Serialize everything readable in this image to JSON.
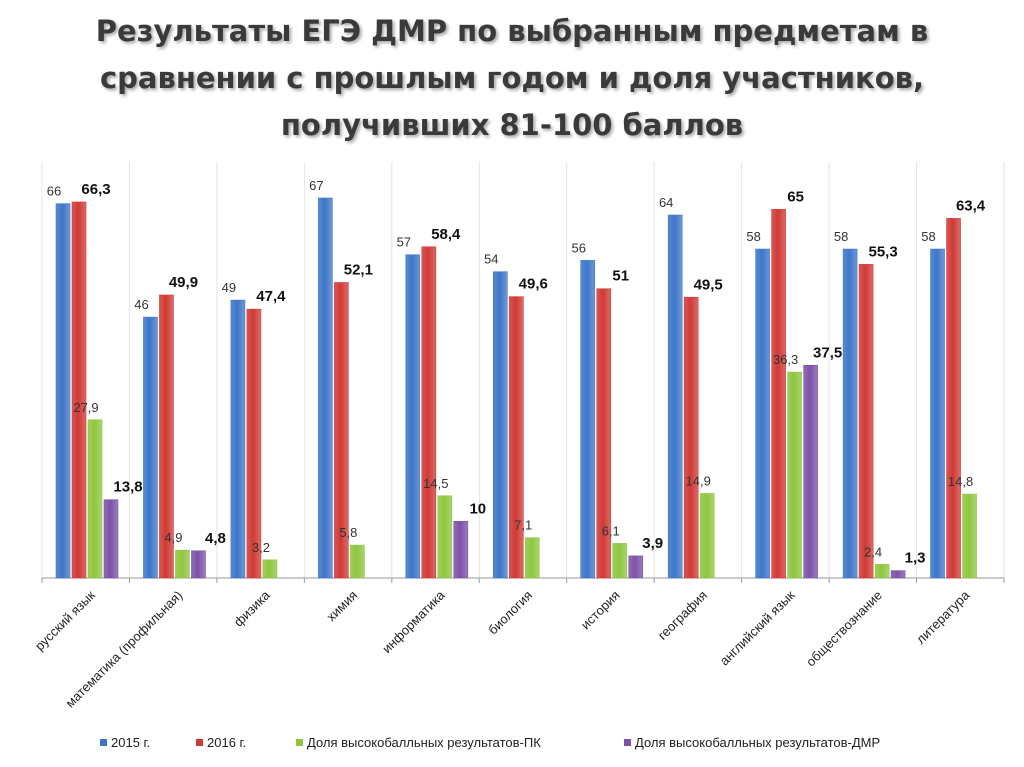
{
  "title_lines": [
    "Результаты ЕГЭ ДМР по выбранным предметам в",
    "сравнении с прошлым годом и доля участников,",
    "получивших 81-100 баллов"
  ],
  "chart_data": {
    "type": "bar",
    "title": "Результаты ЕГЭ ДМР по выбранным предметам в сравнении с прошлым годом и доля участников, получивших 81-100 баллов",
    "categories": [
      "русский язык",
      "математика (профильная)",
      "физика",
      "химия",
      "информатика",
      "биология",
      "история",
      "география",
      "английский язык",
      "обществознание",
      "литература"
    ],
    "series": [
      {
        "name": "2015 г.",
        "color": "#3e76c8",
        "label_style": "normal",
        "values": [
          66,
          46,
          49,
          67,
          57,
          54,
          56,
          64,
          58,
          58,
          58
        ],
        "labels": [
          "66",
          "46",
          "49",
          "67",
          "57",
          "54",
          "56",
          "64",
          "58",
          "58",
          "58"
        ]
      },
      {
        "name": "2016 г.",
        "color": "#d03a36",
        "label_style": "bold",
        "values": [
          66.3,
          49.9,
          47.4,
          52.1,
          58.4,
          49.6,
          51,
          49.5,
          65,
          55.3,
          63.4
        ],
        "labels": [
          "66,3",
          "49,9",
          "47,4",
          "52,1",
          "58,4",
          "49,6",
          "51",
          "49,5",
          "65",
          "55,3",
          "63,4"
        ]
      },
      {
        "name": "Доля высокобалльных результатов-ПК",
        "color": "#8ec63f",
        "label_style": "normal",
        "values": [
          27.9,
          4.9,
          3.2,
          5.8,
          14.5,
          7.1,
          6.1,
          14.9,
          36.3,
          2.4,
          14.8
        ],
        "labels": [
          "27,9",
          "4,9",
          "3,2",
          "5,8",
          "14,5",
          "7,1",
          "6,1",
          "14,9",
          "36,3",
          "2,4",
          "14,8"
        ]
      },
      {
        "name": "Доля высокобалльных результатов-ДМР",
        "color": "#7d52a8",
        "label_style": "bold",
        "values": [
          13.8,
          4.8,
          null,
          null,
          10,
          null,
          3.9,
          null,
          37.5,
          1.3,
          null
        ],
        "labels": [
          "13,8",
          "4,8",
          "",
          "",
          "10",
          "",
          "3,9",
          "",
          "37,5",
          "1,3",
          ""
        ]
      }
    ],
    "ylim": [
      0,
      70
    ],
    "grid": true,
    "legend_position": "bottom"
  }
}
